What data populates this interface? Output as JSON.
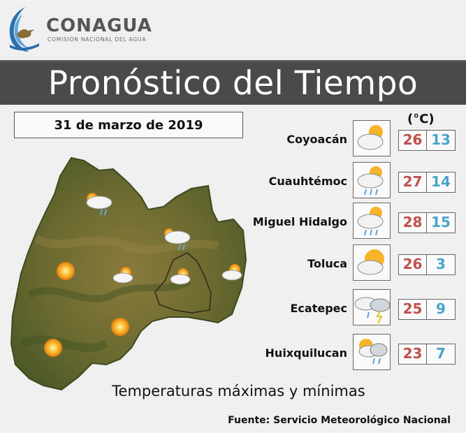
{
  "brand": {
    "name": "CONAGUA",
    "subtitle": "COMISIÓN NACIONAL DEL AGUA"
  },
  "banner": {
    "title": "Pronóstico del Tiempo"
  },
  "date": "31 de marzo de 2019",
  "unit_label": "(°C)",
  "colors": {
    "max_temp": "#c0504d",
    "min_temp": "#4aa3c9",
    "banner": "#4a4a4a"
  },
  "forecasts": [
    {
      "city": "Coyoacán",
      "icon": "partly-cloudy-icon",
      "max": "26",
      "min": "13"
    },
    {
      "city": "Cuauhtémoc",
      "icon": "cloudy-rain-icon",
      "max": "27",
      "min": "14"
    },
    {
      "city": "Miguel Hidalgo",
      "icon": "cloudy-rain-icon",
      "max": "28",
      "min": "15"
    },
    {
      "city": "Toluca",
      "icon": "sun-cloud-icon",
      "max": "26",
      "min": "3"
    },
    {
      "city": "Ecatepec",
      "icon": "storm-icon",
      "max": "25",
      "min": "9"
    },
    {
      "city": "Huixquilucan",
      "icon": "sun-cloud-rain-icon",
      "max": "23",
      "min": "7"
    }
  ],
  "caption": "Temperaturas máximas y mínimas",
  "source": "Fuente: Servicio Meteorológico Nacional"
}
